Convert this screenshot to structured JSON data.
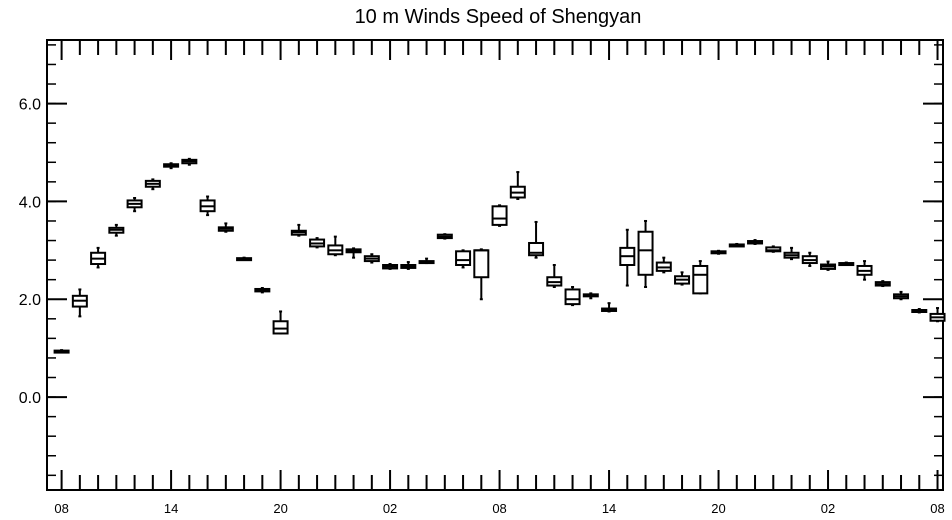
{
  "chart_data": {
    "type": "box",
    "title": "10 m Winds Speed of Shengyan",
    "xlabel": "",
    "ylabel": "",
    "ylim": [
      -1.9,
      7.3
    ],
    "yticks": [
      {
        "value": 0,
        "label": "0.0"
      },
      {
        "value": 2,
        "label": "2.0"
      },
      {
        "value": 4,
        "label": "4.0"
      },
      {
        "value": 6,
        "label": "6.0"
      }
    ],
    "y_minor_step": 0.4,
    "xlim": [
      -0.8,
      48.3
    ],
    "xtick_labels": [
      {
        "index": 0,
        "label": "08"
      },
      {
        "index": 6,
        "label": "14"
      },
      {
        "index": 12,
        "label": "20"
      },
      {
        "index": 18,
        "label": "02"
      },
      {
        "index": 24,
        "label": "08"
      },
      {
        "index": 30,
        "label": "14"
      },
      {
        "index": 36,
        "label": "20"
      },
      {
        "index": 42,
        "label": "02"
      },
      {
        "index": 48,
        "label": "08"
      }
    ],
    "grid": false,
    "boxes": [
      {
        "index": 0,
        "min": 0.92,
        "q1": 0.93,
        "median": 0.94,
        "q3": 0.95,
        "max": 0.96
      },
      {
        "index": 1,
        "min": 1.65,
        "q1": 1.85,
        "median": 1.97,
        "q3": 2.07,
        "max": 2.2
      },
      {
        "index": 2,
        "min": 2.65,
        "q1": 2.72,
        "median": 2.83,
        "q3": 2.95,
        "max": 3.05
      },
      {
        "index": 3,
        "min": 3.3,
        "q1": 3.36,
        "median": 3.42,
        "q3": 3.46,
        "max": 3.52
      },
      {
        "index": 4,
        "min": 3.8,
        "q1": 3.88,
        "median": 3.95,
        "q3": 4.02,
        "max": 4.07
      },
      {
        "index": 5,
        "min": 4.25,
        "q1": 4.3,
        "median": 4.36,
        "q3": 4.42,
        "max": 4.45
      },
      {
        "index": 6,
        "min": 4.68,
        "q1": 4.71,
        "median": 4.74,
        "q3": 4.76,
        "max": 4.78
      },
      {
        "index": 7,
        "min": 4.75,
        "q1": 4.78,
        "median": 4.82,
        "q3": 4.85,
        "max": 4.87
      },
      {
        "index": 8,
        "min": 3.72,
        "q1": 3.8,
        "median": 3.9,
        "q3": 4.02,
        "max": 4.1
      },
      {
        "index": 9,
        "min": 3.38,
        "q1": 3.4,
        "median": 3.44,
        "q3": 3.47,
        "max": 3.55
      },
      {
        "index": 10,
        "min": 2.81,
        "q1": 2.82,
        "median": 2.83,
        "q3": 2.84,
        "max": 2.85
      },
      {
        "index": 11,
        "min": 2.14,
        "q1": 2.16,
        "median": 2.18,
        "q3": 2.21,
        "max": 2.23
      },
      {
        "index": 12,
        "min": 1.3,
        "q1": 1.3,
        "median": 1.4,
        "q3": 1.55,
        "max": 1.75
      },
      {
        "index": 13,
        "min": 3.3,
        "q1": 3.32,
        "median": 3.37,
        "q3": 3.4,
        "max": 3.52
      },
      {
        "index": 14,
        "min": 3.06,
        "q1": 3.08,
        "median": 3.14,
        "q3": 3.22,
        "max": 3.25
      },
      {
        "index": 15,
        "min": 2.9,
        "q1": 2.92,
        "median": 3.0,
        "q3": 3.1,
        "max": 3.28
      },
      {
        "index": 16,
        "min": 2.85,
        "q1": 2.96,
        "median": 2.99,
        "q3": 3.02,
        "max": 3.04
      },
      {
        "index": 17,
        "min": 2.75,
        "q1": 2.78,
        "median": 2.83,
        "q3": 2.88,
        "max": 2.92
      },
      {
        "index": 18,
        "min": 2.62,
        "q1": 2.63,
        "median": 2.67,
        "q3": 2.7,
        "max": 2.72
      },
      {
        "index": 19,
        "min": 2.62,
        "q1": 2.64,
        "median": 2.67,
        "q3": 2.7,
        "max": 2.76
      },
      {
        "index": 20,
        "min": 2.74,
        "q1": 2.75,
        "median": 2.76,
        "q3": 2.78,
        "max": 2.83
      },
      {
        "index": 21,
        "min": 3.24,
        "q1": 3.25,
        "median": 3.28,
        "q3": 3.32,
        "max": 3.33
      },
      {
        "index": 22,
        "min": 2.65,
        "q1": 2.7,
        "median": 2.8,
        "q3": 2.98,
        "max": 3.0
      },
      {
        "index": 23,
        "min": 2.0,
        "q1": 2.45,
        "median": 3.0,
        "q3": 3.0,
        "max": 3.02
      },
      {
        "index": 24,
        "min": 3.5,
        "q1": 3.52,
        "median": 3.65,
        "q3": 3.9,
        "max": 3.92
      },
      {
        "index": 25,
        "min": 4.05,
        "q1": 4.08,
        "median": 4.18,
        "q3": 4.3,
        "max": 4.6
      },
      {
        "index": 26,
        "min": 2.85,
        "q1": 2.9,
        "median": 2.95,
        "q3": 3.15,
        "max": 3.58
      },
      {
        "index": 27,
        "min": 2.25,
        "q1": 2.28,
        "median": 2.35,
        "q3": 2.45,
        "max": 2.7
      },
      {
        "index": 28,
        "min": 1.88,
        "q1": 1.9,
        "median": 2.0,
        "q3": 2.2,
        "max": 2.25
      },
      {
        "index": 29,
        "min": 2.02,
        "q1": 2.06,
        "median": 2.08,
        "q3": 2.1,
        "max": 2.12
      },
      {
        "index": 30,
        "min": 1.75,
        "q1": 1.76,
        "median": 1.78,
        "q3": 1.81,
        "max": 1.92
      },
      {
        "index": 31,
        "min": 2.28,
        "q1": 2.7,
        "median": 2.88,
        "q3": 3.05,
        "max": 3.42
      },
      {
        "index": 32,
        "min": 2.25,
        "q1": 2.5,
        "median": 3.0,
        "q3": 3.38,
        "max": 3.6
      },
      {
        "index": 33,
        "min": 2.55,
        "q1": 2.58,
        "median": 2.65,
        "q3": 2.75,
        "max": 2.85
      },
      {
        "index": 34,
        "min": 2.3,
        "q1": 2.32,
        "median": 2.4,
        "q3": 2.47,
        "max": 2.55
      },
      {
        "index": 35,
        "min": 2.12,
        "q1": 2.12,
        "median": 2.5,
        "q3": 2.68,
        "max": 2.78
      },
      {
        "index": 36,
        "min": 2.93,
        "q1": 2.94,
        "median": 2.96,
        "q3": 2.98,
        "max": 2.99
      },
      {
        "index": 37,
        "min": 3.09,
        "q1": 3.1,
        "median": 3.11,
        "q3": 3.12,
        "max": 3.13
      },
      {
        "index": 38,
        "min": 3.13,
        "q1": 3.14,
        "median": 3.17,
        "q3": 3.19,
        "max": 3.21
      },
      {
        "index": 39,
        "min": 2.97,
        "q1": 2.98,
        "median": 3.0,
        "q3": 3.06,
        "max": 3.08
      },
      {
        "index": 40,
        "min": 2.82,
        "q1": 2.85,
        "median": 2.9,
        "q3": 2.95,
        "max": 3.05
      },
      {
        "index": 41,
        "min": 2.68,
        "q1": 2.74,
        "median": 2.8,
        "q3": 2.88,
        "max": 2.95
      },
      {
        "index": 42,
        "min": 2.6,
        "q1": 2.62,
        "median": 2.67,
        "q3": 2.71,
        "max": 2.77
      },
      {
        "index": 43,
        "min": 2.71,
        "q1": 2.72,
        "median": 2.73,
        "q3": 2.74,
        "max": 2.75
      },
      {
        "index": 44,
        "min": 2.4,
        "q1": 2.5,
        "median": 2.58,
        "q3": 2.68,
        "max": 2.78
      },
      {
        "index": 45,
        "min": 2.27,
        "q1": 2.28,
        "median": 2.31,
        "q3": 2.35,
        "max": 2.37
      },
      {
        "index": 46,
        "min": 2.0,
        "q1": 2.02,
        "median": 2.06,
        "q3": 2.1,
        "max": 2.15
      },
      {
        "index": 47,
        "min": 1.73,
        "q1": 1.74,
        "median": 1.76,
        "q3": 1.78,
        "max": 1.8
      },
      {
        "index": 48,
        "min": 1.55,
        "q1": 1.56,
        "median": 1.63,
        "q3": 1.7,
        "max": 1.82
      }
    ]
  }
}
